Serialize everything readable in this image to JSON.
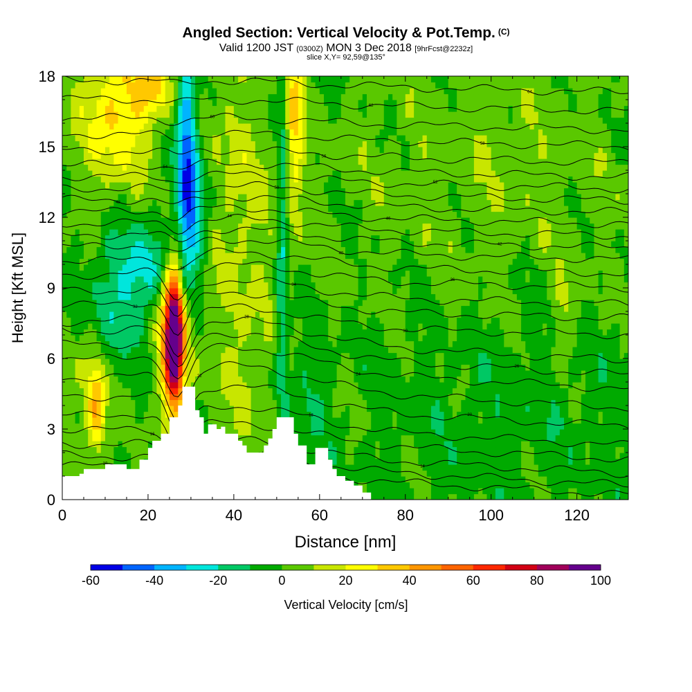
{
  "header": {
    "title": "Angled Section: Vertical Velocity & Pot.Temp.",
    "title_unit": "(C)",
    "valid_prefix": "Valid 1200 JST",
    "valid_utc": "(0300Z)",
    "valid_date": "MON 3 Dec 2018",
    "forecast": "[9hrFcst@2232z]",
    "slice": "slice X,Y= 92,59@135°"
  },
  "chart_data": {
    "type": "heatmap",
    "xlabel": "Distance [nm]",
    "ylabel": "Height [Kft MSL]",
    "xlim": [
      0,
      132
    ],
    "ylim": [
      0,
      18
    ],
    "xticks": [
      0,
      20,
      40,
      60,
      80,
      100,
      120
    ],
    "yticks": [
      0,
      3,
      6,
      9,
      12,
      15,
      18
    ],
    "colorbar": {
      "label": "Vertical Velocity [cm/s]",
      "range": [
        -60,
        100
      ],
      "step": 10,
      "ticks": [
        -60,
        -40,
        -20,
        0,
        20,
        40,
        60,
        80,
        100
      ],
      "colors": [
        "#0000e6",
        "#0064ff",
        "#00b4ff",
        "#00e6dc",
        "#00c864",
        "#00aa00",
        "#5ac800",
        "#c8e600",
        "#ffff00",
        "#ffc800",
        "#ff9600",
        "#ff6400",
        "#ff2800",
        "#d20014",
        "#a0005a",
        "#64008c"
      ]
    },
    "field": {
      "background_cm_s": 0,
      "features": [
        {
          "x": 26,
          "y": 7.0,
          "sx": 1.5,
          "sy": 2.0,
          "w": 100,
          "desc": "updraft core"
        },
        {
          "x": 26,
          "y": 6.8,
          "sx": 3.2,
          "sy": 2.8,
          "w": 25
        },
        {
          "x": 29,
          "y": 15.0,
          "sx": 1.6,
          "sy": 3.2,
          "w": -45,
          "desc": "downdraft"
        },
        {
          "x": 31,
          "y": 12.0,
          "sx": 2.5,
          "sy": 2.0,
          "w": -30
        },
        {
          "x": 21,
          "y": 9.8,
          "sx": 4.5,
          "sy": 1.5,
          "w": -25
        },
        {
          "x": 11,
          "y": 8.5,
          "sx": 4.0,
          "sy": 1.8,
          "w": -20
        },
        {
          "x": 12,
          "y": 16.5,
          "sx": 5.5,
          "sy": 2.2,
          "w": 32
        },
        {
          "x": 21,
          "y": 17.5,
          "sx": 3.0,
          "sy": 1.0,
          "w": 30
        },
        {
          "x": 8,
          "y": 3.8,
          "sx": 1.5,
          "sy": 1.3,
          "w": 36
        },
        {
          "x": 6,
          "y": 5.5,
          "sx": 2.5,
          "sy": 2.5,
          "w": 12
        },
        {
          "x": 54,
          "y": 16.0,
          "sx": 1.6,
          "sy": 3.0,
          "w": 30
        },
        {
          "x": 51.5,
          "y": 12.0,
          "sx": 0.9,
          "sy": 6.0,
          "w": -20
        },
        {
          "x": 50.5,
          "y": 7.5,
          "sx": 1.0,
          "sy": 2.0,
          "w": -12
        },
        {
          "x": 40,
          "y": 13.0,
          "sx": 6.0,
          "sy": 4.0,
          "w": 14
        },
        {
          "x": 45,
          "y": 5.5,
          "sx": 6.0,
          "sy": 2.5,
          "w": 12
        },
        {
          "x": 55,
          "y": 4.5,
          "sx": 5.0,
          "sy": 2.0,
          "w": -10
        },
        {
          "x": 100,
          "y": 14.0,
          "sx": 25.0,
          "sy": 4.0,
          "w": 7
        },
        {
          "x": 105,
          "y": 4.0,
          "sx": 25.0,
          "sy": 3.0,
          "w": -6
        },
        {
          "x": 117,
          "y": 8.0,
          "sx": 2.0,
          "sy": 1.3,
          "w": 10
        }
      ]
    },
    "terrain_kft": [
      [
        0,
        1.0
      ],
      [
        4,
        1.1
      ],
      [
        5,
        1.3
      ],
      [
        9,
        1.3
      ],
      [
        10,
        1.5
      ],
      [
        14,
        1.5
      ],
      [
        15,
        1.3
      ],
      [
        17,
        1.3
      ],
      [
        18,
        1.7
      ],
      [
        20,
        2.2
      ],
      [
        21,
        2.5
      ],
      [
        22,
        2.5
      ],
      [
        23,
        2.8
      ],
      [
        24,
        2.8
      ],
      [
        25,
        3.5
      ],
      [
        26,
        3.5
      ],
      [
        27,
        4.0
      ],
      [
        28,
        4.8
      ],
      [
        30,
        4.8
      ],
      [
        31,
        3.8
      ],
      [
        32,
        3.5
      ],
      [
        33,
        2.8
      ],
      [
        34,
        3.2
      ],
      [
        35,
        3.2
      ],
      [
        36,
        3.0
      ],
      [
        37,
        3.1
      ],
      [
        38,
        2.8
      ],
      [
        40,
        2.8
      ],
      [
        41,
        2.5
      ],
      [
        42,
        2.3
      ],
      [
        43,
        2.0
      ],
      [
        46,
        2.0
      ],
      [
        47,
        2.3
      ],
      [
        48,
        2.6
      ],
      [
        49,
        3.0
      ],
      [
        50,
        3.5
      ],
      [
        53,
        3.5
      ],
      [
        54,
        2.8
      ],
      [
        55,
        2.3
      ],
      [
        57,
        1.5
      ],
      [
        58,
        1.5
      ],
      [
        59,
        2.2
      ],
      [
        61,
        2.2
      ],
      [
        62,
        1.7
      ],
      [
        63,
        1.3
      ],
      [
        64,
        1.0
      ],
      [
        66,
        0.8
      ],
      [
        68,
        0.6
      ],
      [
        70,
        0.3
      ],
      [
        72,
        0.0
      ],
      [
        132,
        0.0
      ]
    ],
    "theta_contours": [
      {
        "label": "10",
        "base": 0.9,
        "bump": 0.5
      },
      {
        "label": "12",
        "base": 1.3,
        "bump": 0.7
      },
      {
        "label": "14",
        "base": 1.8,
        "bump": 0.9
      },
      {
        "label": "16",
        "base": 2.4,
        "bump": 1.1
      },
      {
        "label": "18",
        "base": 3.0,
        "bump": 1.3
      },
      {
        "label": "20",
        "base": 3.8,
        "bump": 1.4
      },
      {
        "label": "22",
        "base": 4.6,
        "bump": 1.5
      },
      {
        "label": "24",
        "base": 5.4,
        "bump": 1.5
      },
      {
        "label": "26",
        "base": 6.0,
        "bump": 1.5
      },
      {
        "label": "28",
        "base": 6.6,
        "bump": 1.4
      },
      {
        "label": "30",
        "base": 7.3,
        "bump": 1.3
      },
      {
        "label": "32",
        "base": 8.0,
        "bump": 1.2
      },
      {
        "label": "34",
        "base": 8.6,
        "bump": 1.1
      },
      {
        "label": "36",
        "base": 9.3,
        "bump": 1.0
      },
      {
        "label": "38",
        "base": 9.9,
        "bump": 0.9
      },
      {
        "label": "40",
        "base": 10.5,
        "bump": 0.8
      },
      {
        "label": "42",
        "base": 11.0,
        "bump": 0.7
      },
      {
        "label": "44",
        "base": 11.5,
        "bump": 0.6
      },
      {
        "label": "46",
        "base": 12.0,
        "bump": 0.55
      },
      {
        "label": "48",
        "base": 12.5,
        "bump": 0.5
      },
      {
        "label": "50",
        "base": 13.0,
        "bump": 0.45
      },
      {
        "label": "52",
        "base": 13.5,
        "bump": 0.4
      },
      {
        "label": "54",
        "base": 14.0,
        "bump": 0.35
      },
      {
        "label": "56",
        "base": 14.6,
        "bump": 0.3
      },
      {
        "label": "58",
        "base": 15.3,
        "bump": 0.3
      },
      {
        "label": "60",
        "base": 16.0,
        "bump": 0.25
      },
      {
        "label": "62",
        "base": 16.8,
        "bump": 0.2
      },
      {
        "label": "64",
        "base": 17.6,
        "bump": 0.2
      }
    ]
  }
}
